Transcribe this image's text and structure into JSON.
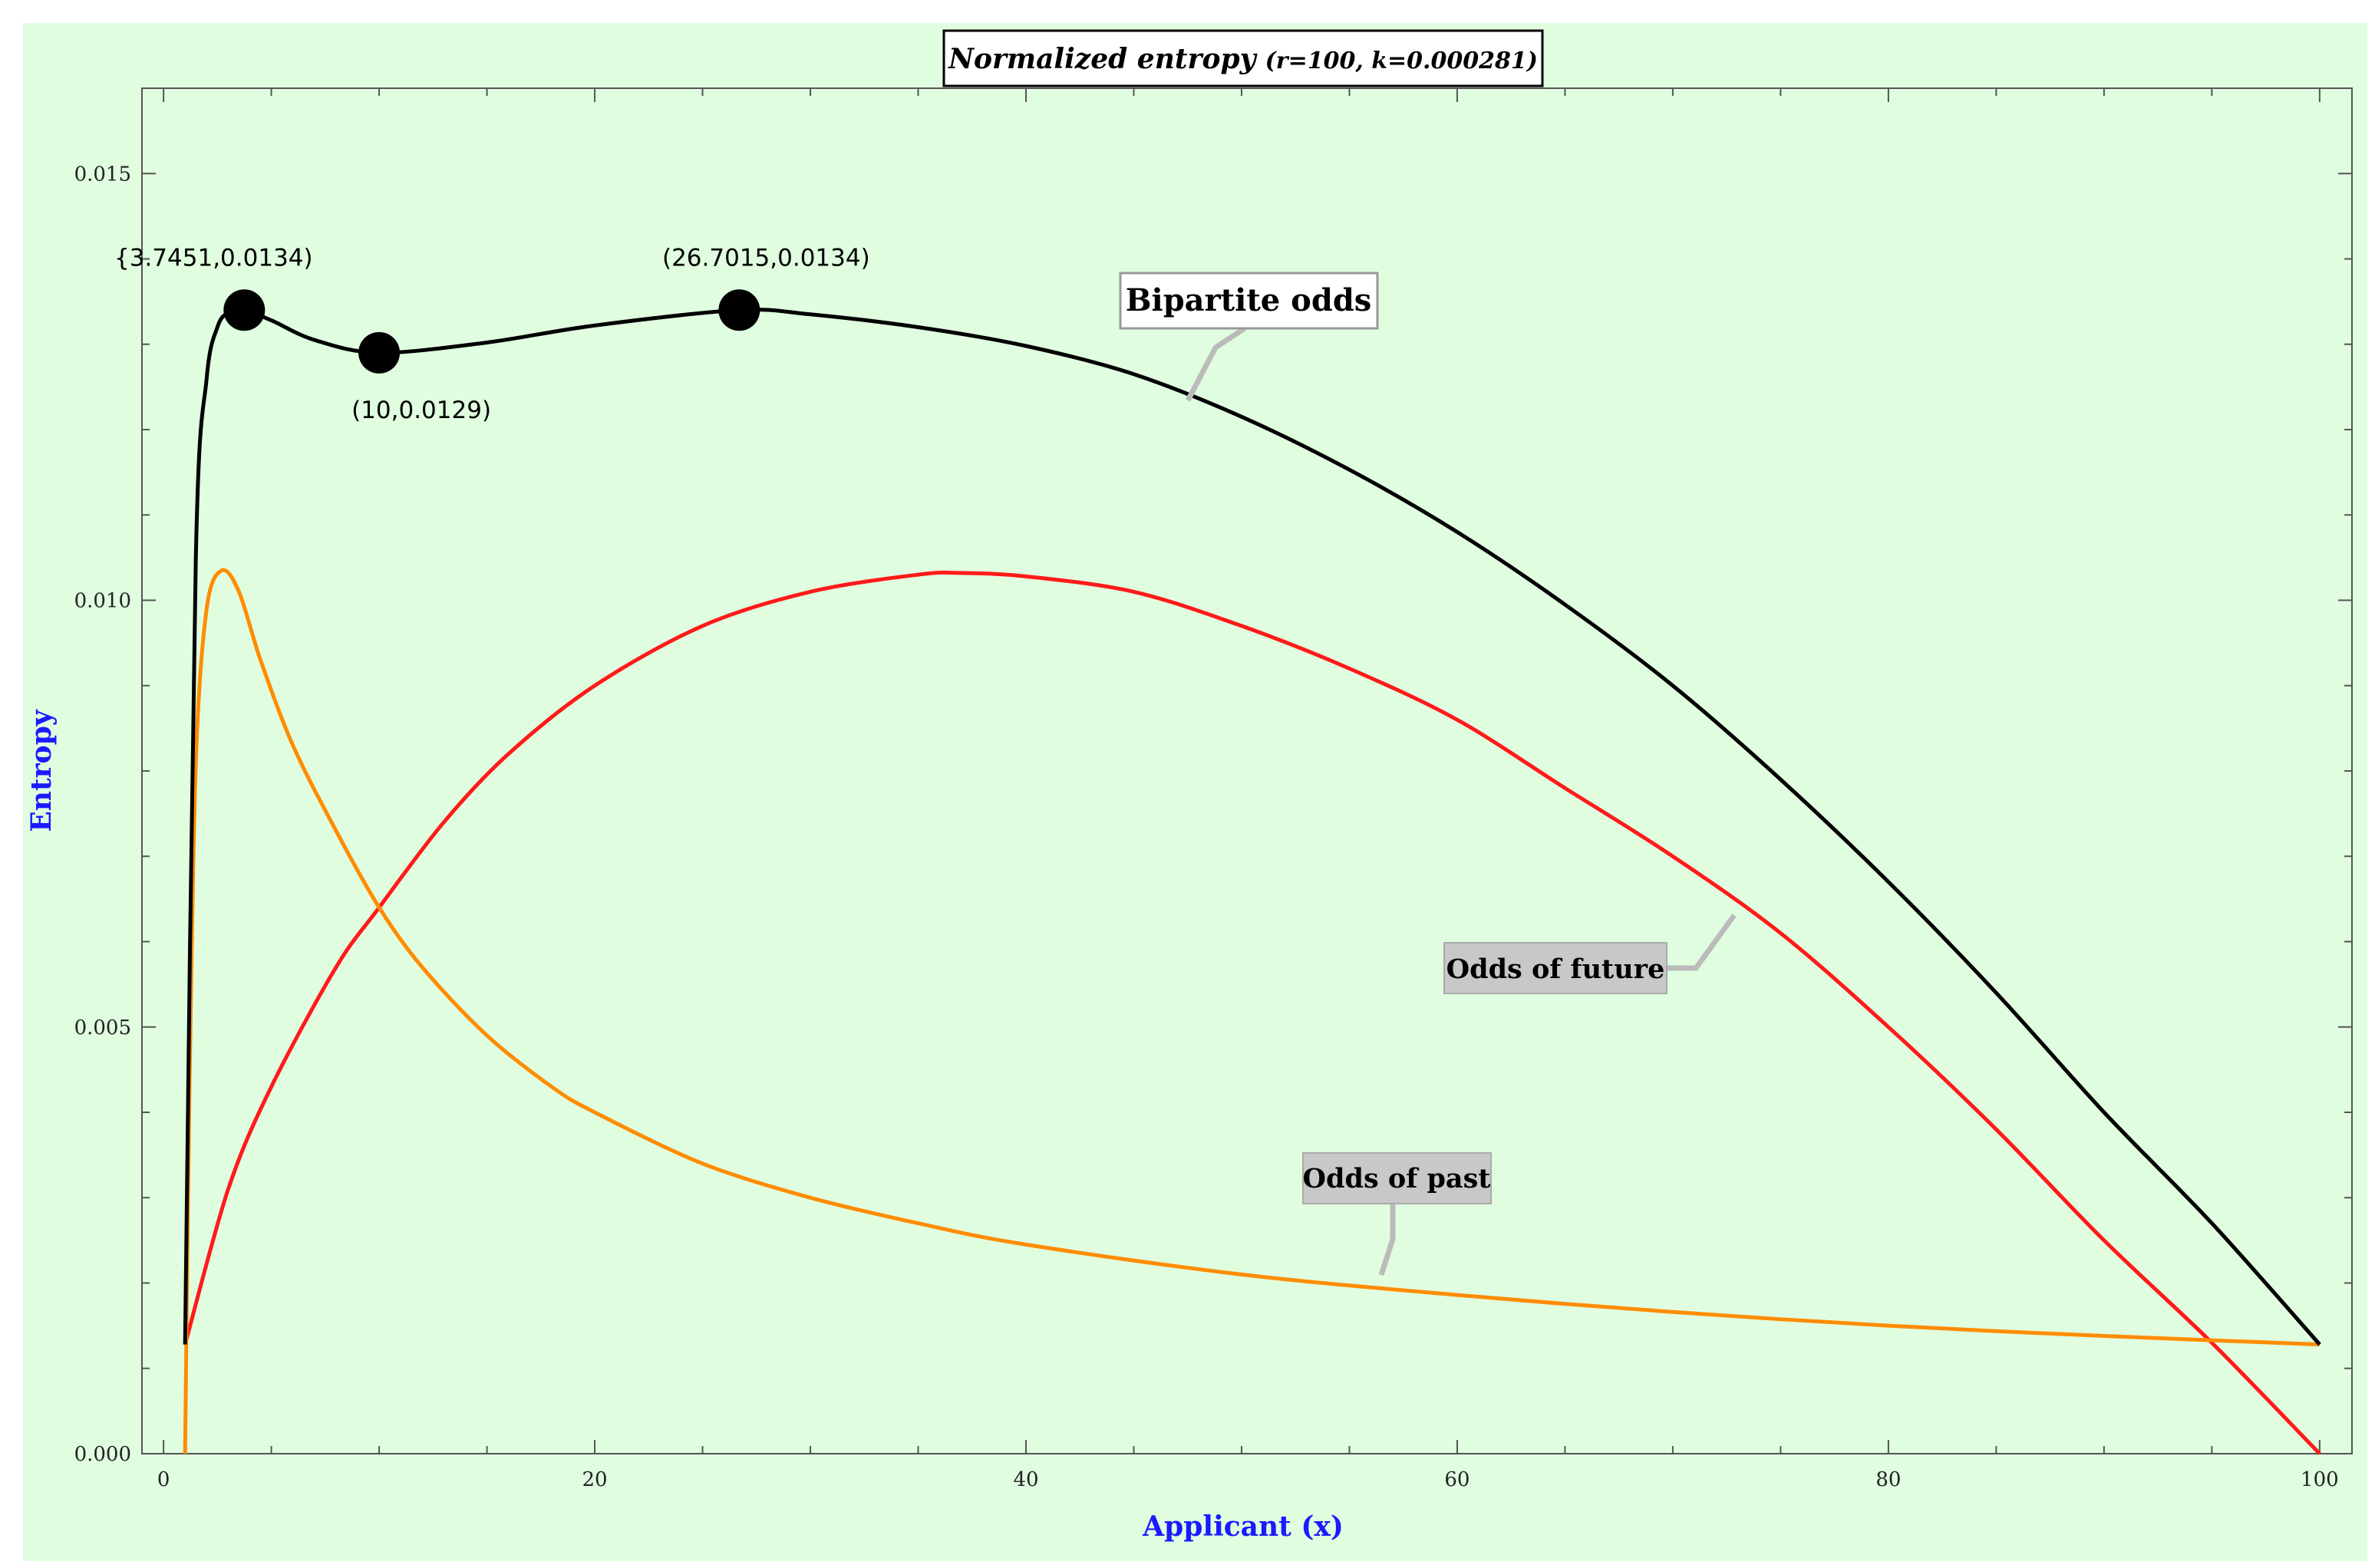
{
  "chart_data": {
    "type": "line",
    "title": "Normalized entropy",
    "title_params": "(r=100, k=0.000281)",
    "xlabel": "Applicant (x)",
    "ylabel": "Entropy",
    "xlim": [
      -1,
      101.5
    ],
    "ylim": [
      0,
      0.016
    ],
    "xticks": [
      0,
      20,
      40,
      60,
      80,
      100
    ],
    "yticks": [
      0.0,
      0.005,
      0.01,
      0.015
    ],
    "ytick_labels": [
      "0.000",
      "0.005",
      "0.010",
      "0.015"
    ],
    "grid": false,
    "background": "#e0fde0",
    "series": [
      {
        "name": "Bipartite odds",
        "color": "#000000",
        "x": [
          1,
          1.5,
          2,
          2.5,
          3,
          3.7451,
          5,
          7,
          10,
          15,
          20,
          26.7015,
          30,
          35,
          40,
          45,
          50,
          55,
          60,
          65,
          70,
          75,
          80,
          85,
          90,
          95,
          100
        ],
        "y": [
          0.00128,
          0.0105,
          0.0126,
          0.0132,
          0.01337,
          0.0134,
          0.01328,
          0.01305,
          0.0129,
          0.01302,
          0.01322,
          0.0134,
          0.01335,
          0.0132,
          0.01298,
          0.01265,
          0.01215,
          0.01153,
          0.0108,
          0.00995,
          0.009,
          0.0079,
          0.0067,
          0.0054,
          0.004,
          0.0027,
          0.00128
        ]
      },
      {
        "name": "Odds of future",
        "color": "#ff1a1a",
        "x": [
          1,
          3,
          5,
          8,
          10,
          13,
          16,
          20,
          25,
          30,
          35,
          37,
          40,
          45,
          50,
          55,
          60,
          65,
          70,
          75,
          80,
          85,
          90,
          95,
          100
        ],
        "y": [
          0.00128,
          0.0031,
          0.0043,
          0.0057,
          0.0064,
          0.0074,
          0.0082,
          0.009,
          0.0097,
          0.0101,
          0.0103,
          0.01032,
          0.01028,
          0.0101,
          0.0097,
          0.0092,
          0.0086,
          0.0078,
          0.007,
          0.0061,
          0.005,
          0.0038,
          0.0025,
          0.0013,
          0.0
        ]
      },
      {
        "name": "Odds of past",
        "color": "#ff8c00",
        "x": [
          1,
          1.2,
          1.5,
          2,
          2.7,
          3.5,
          4.5,
          6,
          8,
          10,
          12,
          15,
          18,
          20,
          25,
          30,
          35,
          40,
          50,
          60,
          70,
          80,
          90,
          100
        ],
        "y": [
          0.0,
          0.0042,
          0.0081,
          0.0099,
          0.01035,
          0.0101,
          0.0093,
          0.0083,
          0.0073,
          0.0064,
          0.0057,
          0.0049,
          0.0043,
          0.004,
          0.0034,
          0.003,
          0.0027,
          0.00245,
          0.0021,
          0.00186,
          0.00166,
          0.0015,
          0.00138,
          0.00128
        ]
      }
    ],
    "points": [
      {
        "x": 3.7451,
        "y": 0.0134,
        "label": "{3.7451,0.0134)"
      },
      {
        "x": 10,
        "y": 0.0129,
        "label": "(10,0.0129)"
      },
      {
        "x": 26.7015,
        "y": 0.0134,
        "label": "(26.7015,0.0134)"
      }
    ],
    "callouts": [
      {
        "text": "Bipartite odds",
        "style": "white"
      },
      {
        "text": "Odds of future",
        "style": "gray"
      },
      {
        "text": "Odds of past",
        "style": "gray"
      }
    ]
  }
}
